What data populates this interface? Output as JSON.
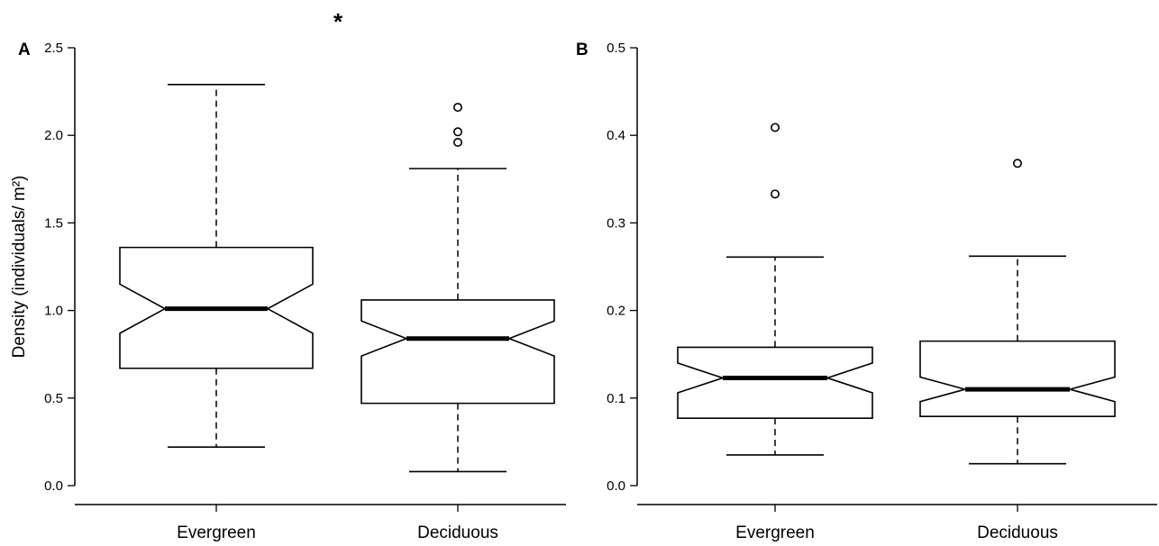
{
  "chart_data": [
    {
      "type": "boxplot",
      "panel": "A",
      "ylabel": "Density (individuals/ m²)",
      "ylim": [
        0,
        2.5
      ],
      "yticks": [
        "0.0",
        "0.5",
        "1.0",
        "1.5",
        "2.0",
        "2.5"
      ],
      "annotation": "*",
      "categories": [
        "Evergreen",
        "Deciduous"
      ],
      "boxes": [
        {
          "category": "Evergreen",
          "whisker_low": 0.22,
          "q1": 0.67,
          "median": 1.01,
          "q3": 1.36,
          "whisker_high": 2.29,
          "notch_low": 0.87,
          "notch_high": 1.15,
          "outliers": []
        },
        {
          "category": "Deciduous",
          "whisker_low": 0.08,
          "q1": 0.47,
          "median": 0.84,
          "q3": 1.06,
          "whisker_high": 1.81,
          "notch_low": 0.74,
          "notch_high": 0.94,
          "outliers": [
            1.96,
            2.02,
            2.16
          ]
        }
      ]
    },
    {
      "type": "boxplot",
      "panel": "B",
      "ylabel": "",
      "ylim": [
        0,
        0.5
      ],
      "yticks": [
        "0.0",
        "0.1",
        "0.2",
        "0.3",
        "0.4",
        "0.5"
      ],
      "categories": [
        "Evergreen",
        "Deciduous"
      ],
      "boxes": [
        {
          "category": "Evergreen",
          "whisker_low": 0.035,
          "q1": 0.077,
          "median": 0.123,
          "q3": 0.158,
          "whisker_high": 0.261,
          "notch_low": 0.106,
          "notch_high": 0.14,
          "outliers": [
            0.333,
            0.409
          ]
        },
        {
          "category": "Deciduous",
          "whisker_low": 0.025,
          "q1": 0.079,
          "median": 0.11,
          "q3": 0.165,
          "whisker_high": 0.262,
          "notch_low": 0.096,
          "notch_high": 0.124,
          "outliers": [
            0.368
          ]
        }
      ]
    }
  ]
}
